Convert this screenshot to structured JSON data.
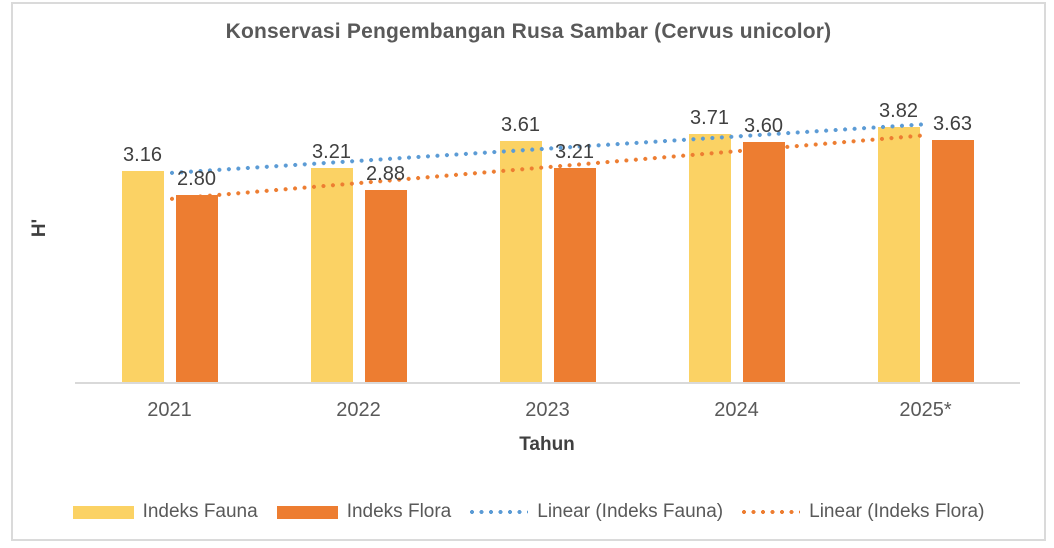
{
  "chart_data": {
    "type": "bar",
    "title": "Konservasi Pengembangan Rusa Sambar (Cervus unicolor)",
    "xlabel": "Tahun",
    "ylabel": "H'",
    "categories": [
      "2021",
      "2022",
      "2023",
      "2024",
      "2025*"
    ],
    "series": [
      {
        "name": "Indeks Fauna",
        "color": "#FBD264",
        "values": [
          3.16,
          3.21,
          3.61,
          3.71,
          3.82
        ],
        "labels": [
          "3.16",
          "3.21",
          "3.61",
          "3.71",
          "3.82"
        ]
      },
      {
        "name": "Indeks Flora",
        "color": "#ED7D31",
        "values": [
          2.8,
          2.88,
          3.21,
          3.6,
          3.63
        ],
        "labels": [
          "2.80",
          "2.88",
          "3.21",
          "3.60",
          "3.63"
        ]
      }
    ],
    "trendlines": [
      {
        "name": "Linear (Indeks Fauna)",
        "series_index": 0,
        "color": "#5B9BD5",
        "style": "dotted"
      },
      {
        "name": "Linear (Indeks Flora)",
        "series_index": 1,
        "color": "#ED7D31",
        "style": "dotted"
      }
    ],
    "ylim": [
      0,
      4.7
    ],
    "grid": false,
    "legend_position": "bottom",
    "axis_line_color": "#D9D9D9",
    "data_labels_shown": true
  }
}
